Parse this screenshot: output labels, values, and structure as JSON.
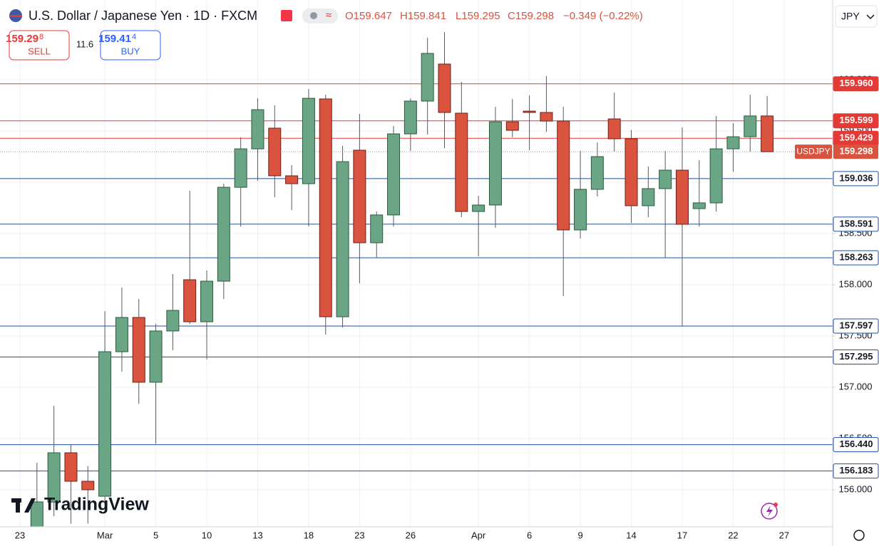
{
  "header": {
    "symbol": "U.S. Dollar / Japanese Yen · 1D · FXCM",
    "stats": [
      "O159.647",
      "H159.841",
      "L159.295",
      "C159.298",
      "−0.349 (−0.22%)"
    ],
    "sell": {
      "price_main": "159.29",
      "price_pip": "8",
      "label": "SELL"
    },
    "spread": "11.6",
    "buy": {
      "price_main": "159.41",
      "price_pip": "4",
      "label": "BUY"
    },
    "currency": "JPY",
    "logo": "TradingView"
  },
  "chart_data": {
    "type": "candlestick",
    "categories": [
      "23",
      null,
      null,
      null,
      null,
      "Mar",
      null,
      null,
      "5",
      null,
      null,
      "10",
      null,
      null,
      "13",
      null,
      null,
      "18",
      null,
      null,
      "23",
      null,
      null,
      "26",
      null,
      null,
      null,
      "Apr",
      null,
      null,
      "6",
      null,
      null,
      "9",
      null,
      null,
      "14",
      null,
      null,
      "17",
      null,
      null,
      "22",
      null,
      null,
      "27"
    ],
    "open": [
      null,
      155.58,
      155.88,
      156.361,
      156.083,
      155.937,
      157.347,
      157.681,
      157.049,
      157.549,
      158.049,
      157.639,
      158.035,
      158.951,
      159.326,
      159.528,
      159.063,
      158.986,
      159.813,
      157.688,
      159.313,
      158.41,
      158.681,
      159.472,
      159.792,
      160.153,
      159.674,
      158.715,
      158.778,
      159.59,
      159.694,
      159.681,
      159.597,
      158.535,
      158.931,
      159.618,
      159.424,
      158.771,
      158.938,
      159.118,
      158.743,
      158.799,
      159.326,
      159.444,
      159.647,
      null
    ],
    "high": [
      null,
      156.264,
      156.819,
      156.438,
      156.229,
      157.743,
      157.972,
      157.861,
      157.618,
      158.104,
      158.917,
      158.139,
      158.986,
      159.438,
      159.819,
      159.75,
      159.167,
      159.91,
      159.854,
      159.354,
      159.667,
      158.715,
      159.549,
      159.819,
      160.41,
      160.465,
      159.979,
      158.868,
      159.736,
      159.813,
      159.847,
      160.035,
      159.736,
      159.306,
      159.389,
      159.875,
      159.507,
      159.153,
      159.306,
      159.535,
      159.215,
      159.646,
      159.576,
      159.854,
      159.841,
      null
    ],
    "low": [
      null,
      155.5,
      155.743,
      155.67,
      155.67,
      155.778,
      157.153,
      156.84,
      156.451,
      157.361,
      157.618,
      157.271,
      157.861,
      158.569,
      159.014,
      158.854,
      158.729,
      158.569,
      157.514,
      157.583,
      158.014,
      158.264,
      158.569,
      159.306,
      159.465,
      159.333,
      158.66,
      158.278,
      158.556,
      159.438,
      159.313,
      159.493,
      157.889,
      158.451,
      158.861,
      159.299,
      158.604,
      158.66,
      158.264,
      157.597,
      158.569,
      158.715,
      159.104,
      159.299,
      159.295,
      null
    ],
    "close": [
      null,
      155.882,
      156.361,
      156.083,
      156.0,
      157.347,
      157.681,
      157.049,
      157.549,
      157.75,
      157.639,
      158.035,
      158.951,
      159.326,
      159.708,
      159.063,
      158.986,
      159.819,
      157.688,
      159.201,
      158.41,
      158.681,
      159.472,
      159.792,
      160.257,
      159.681,
      158.715,
      158.778,
      159.59,
      159.507,
      159.681,
      159.597,
      158.535,
      158.931,
      159.25,
      159.424,
      158.771,
      158.938,
      159.118,
      158.59,
      158.799,
      159.326,
      159.444,
      159.647,
      159.298,
      null
    ],
    "up_color": "#6aa585",
    "down_color": "#d9533f",
    "ylim": [
      155.639,
      160.778
    ],
    "yticks": [
      {
        "value": 156,
        "label": "156.000"
      },
      {
        "value": 156.5,
        "label": "156.500"
      },
      {
        "value": 157,
        "label": "157.000"
      },
      {
        "value": 157.5,
        "label": "157.500"
      },
      {
        "value": 158,
        "label": "158.000"
      },
      {
        "value": 158.5,
        "label": "158.500"
      },
      {
        "value": 159,
        "label": "159.000"
      },
      {
        "value": 159.5,
        "label": "159.500"
      },
      {
        "value": 160,
        "label": "160.000"
      }
    ],
    "grid": true,
    "price_lines": [
      {
        "value": 159.96,
        "label": "159.960",
        "color": "#e53935",
        "filled": true
      },
      {
        "value": 159.599,
        "label": "159.599",
        "color": "#e53935",
        "filled": true
      },
      {
        "value": 159.429,
        "label": "159.429",
        "color": "#e53935",
        "filled": true
      },
      {
        "value": 159.036,
        "label": "159.036",
        "color": "#1e4fa3",
        "filled": false
      },
      {
        "value": 158.591,
        "label": "158.591",
        "color": "#1e4fa3",
        "filled": false
      },
      {
        "value": 158.263,
        "label": "158.263",
        "color": "#1e4fa3",
        "filled": false
      },
      {
        "value": 157.597,
        "label": "157.597",
        "color": "#1e4fa3",
        "filled": false
      },
      {
        "value": 157.295,
        "label": "157.295",
        "color": "#1e4fa3",
        "filled": false
      },
      {
        "value": 156.44,
        "label": "156.440",
        "color": "#1e4fa3",
        "filled": false
      },
      {
        "value": 156.183,
        "label": "156.183",
        "color": "#1e4fa3",
        "filled": false
      }
    ],
    "last_price": {
      "value": 159.298,
      "label": "159.298",
      "symbol": "USDJPY",
      "color": "#d9533f"
    }
  }
}
